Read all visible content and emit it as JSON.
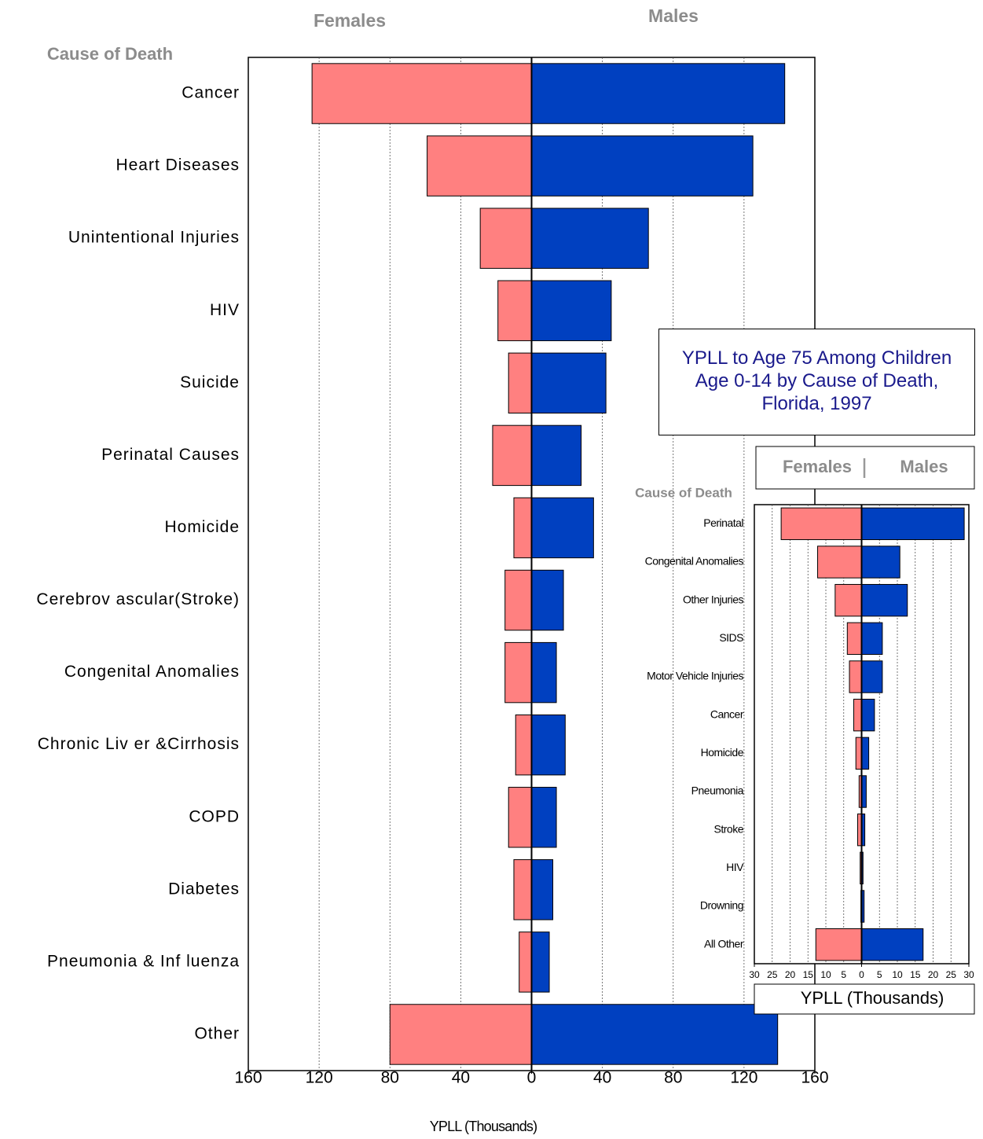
{
  "chart_data": [
    {
      "type": "pyramid",
      "y_label": "Cause of Death",
      "x_label": "YPLL (Thousands)",
      "categories": [
        "Cancer",
        "Heart Diseases",
        "Unintentional Injuries",
        "HIV",
        "Suicide",
        "Perinatal Causes",
        "Homicide",
        "Cerebrov ascular(Stroke)",
        "Congenital Anomalies",
        "Chronic Liv er &Cirrhosis",
        "COPD",
        "Diabetes",
        "Pneumonia & Inf luenza",
        "Other"
      ],
      "series": [
        {
          "name": "Females",
          "color": "#ff8080",
          "values": [
            124,
            59,
            29,
            19,
            13,
            22,
            10,
            15,
            15,
            9,
            13,
            10,
            7,
            80
          ]
        },
        {
          "name": "Males",
          "color": "#0040c0",
          "values": [
            143,
            125,
            66,
            45,
            42,
            28,
            35,
            18,
            14,
            19,
            14,
            12,
            10,
            139
          ]
        }
      ],
      "xlim": [
        -160,
        160
      ],
      "xticks": [
        {
          "value": -160,
          "label": "160"
        },
        {
          "value": -120,
          "label": "120"
        },
        {
          "value": -80,
          "label": "80"
        },
        {
          "value": -40,
          "label": "40"
        },
        0,
        40,
        80,
        120,
        160
      ],
      "grid": true
    },
    {
      "type": "pyramid",
      "title": "YPLL to Age 75 Among Children Age 0-14  by Cause of Death, Florida, 1997",
      "y_label": "Cause of Death",
      "x_label": "YPLL (Thousands)",
      "categories": [
        "Perinatal",
        "Congenital Anomalies",
        "Other Injuries",
        "SIDS",
        "Motor Vehicle Injuries",
        "Cancer",
        "Homicide",
        "Pneumonia",
        "Stroke",
        "HIV",
        "Drowning",
        "All Other"
      ],
      "series": [
        {
          "name": "Females",
          "color": "#ff8080",
          "values": [
            22.5,
            12.3,
            7.4,
            4,
            3.4,
            2.2,
            1.6,
            0.7,
            1.1,
            0.4,
            0.2,
            12.8
          ]
        },
        {
          "name": "Males",
          "color": "#0040c0",
          "values": [
            28.7,
            10.7,
            12.8,
            5.8,
            5.8,
            3.6,
            2,
            1.3,
            0.9,
            0.4,
            0.7,
            17.2
          ]
        }
      ],
      "xlim": [
        -30,
        30
      ],
      "xticks": [
        {
          "value": -30,
          "label": "30"
        },
        {
          "value": -25,
          "label": "25"
        },
        {
          "value": -20,
          "label": "20"
        },
        {
          "value": -15,
          "label": "15"
        },
        {
          "value": -10,
          "label": "10"
        },
        {
          "value": -5,
          "label": "5"
        },
        0,
        5,
        10,
        15,
        20,
        25,
        30
      ],
      "grid": true
    }
  ]
}
